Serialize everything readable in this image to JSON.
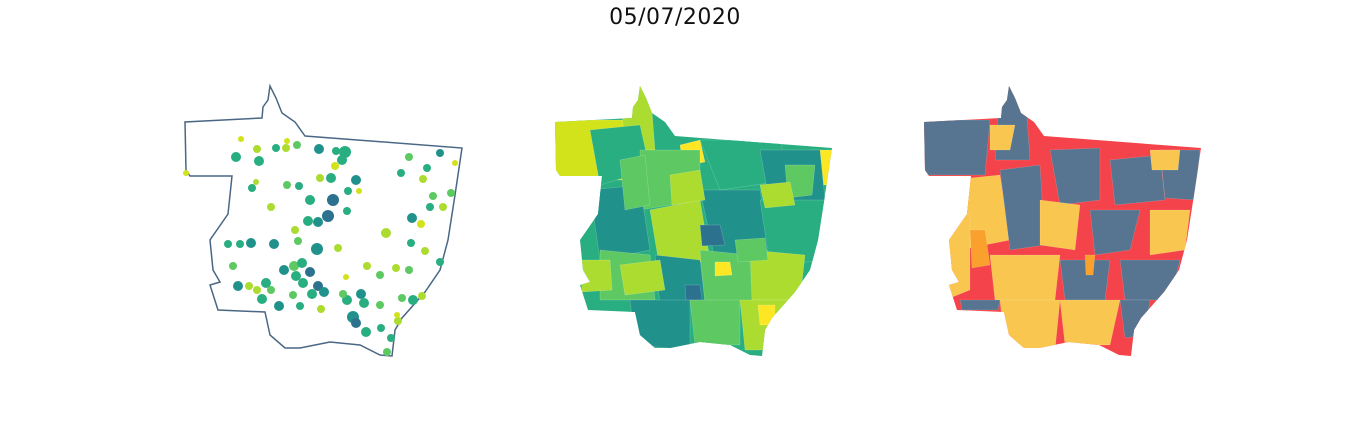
{
  "title": "05/07/2020",
  "colors": {
    "outline": "#4a6785",
    "viridis": [
      "#2c728e",
      "#21918c",
      "#28ae80",
      "#5ec962",
      "#addc30",
      "#d2e21b",
      "#fde725"
    ],
    "risk": {
      "high": "#f4434a",
      "medium": "#f9c74f",
      "medium_alt": "#f9a12c",
      "low": "#577590"
    }
  },
  "panels": [
    {
      "id": "bubble-map",
      "kind": "proportional-symbols"
    },
    {
      "id": "choropleth-viridis",
      "kind": "choropleth"
    },
    {
      "id": "choropleth-risk",
      "kind": "categorical-choropleth"
    }
  ]
}
